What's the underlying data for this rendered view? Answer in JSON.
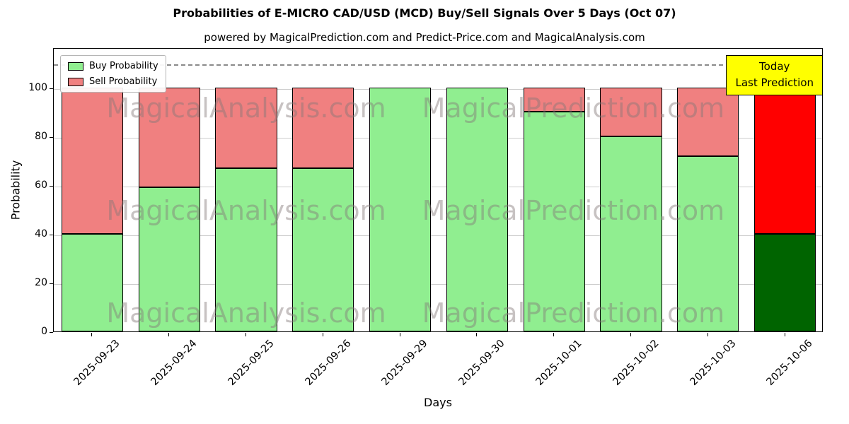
{
  "title": "Probabilities of E-MICRO CAD/USD (MCD) Buy/Sell Signals Over 5 Days (Oct 07)",
  "subtitle": "powered by MagicalPrediction.com and Predict-Price.com and MagicalAnalysis.com",
  "annotation": {
    "line1": "Today",
    "line2": "Last Prediction",
    "bg": "#ffff00"
  },
  "legend": [
    {
      "label": "Buy Probability",
      "color": "#90ee90"
    },
    {
      "label": "Sell Probability",
      "color": "#f08080"
    }
  ],
  "watermarks": [
    "MagicalAnalysis.com",
    "MagicalPrediction.com"
  ],
  "chart_data": {
    "type": "bar",
    "stacked": true,
    "title": "Probabilities of E-MICRO CAD/USD (MCD) Buy/Sell Signals Over 5 Days (Oct 07)",
    "xlabel": "Days",
    "ylabel": "Probability",
    "ylim": [
      0,
      116.5
    ],
    "yticks": [
      0,
      20,
      40,
      60,
      80,
      100
    ],
    "grid": true,
    "legend_position": "upper left",
    "dashed_guide_y": 110,
    "categories": [
      "2025-09-23",
      "2025-09-24",
      "2025-09-25",
      "2025-09-26",
      "2025-09-29",
      "2025-09-30",
      "2025-10-01",
      "2025-10-02",
      "2025-10-03",
      "2025-10-06"
    ],
    "series": [
      {
        "name": "Buy Probability",
        "values": [
          40,
          59,
          67,
          67,
          100,
          100,
          90,
          80,
          72,
          40
        ]
      },
      {
        "name": "Sell Probability",
        "values": [
          60,
          41,
          33,
          33,
          0,
          0,
          10,
          20,
          28,
          60
        ]
      }
    ],
    "colors": {
      "buy": "#90ee90",
      "sell": "#f08080",
      "buy_last": "#006400",
      "sell_last": "#ff0000",
      "bar_edge": "#000000",
      "grid": "#cdcdcd",
      "dashed": "#8a8a8a"
    }
  }
}
